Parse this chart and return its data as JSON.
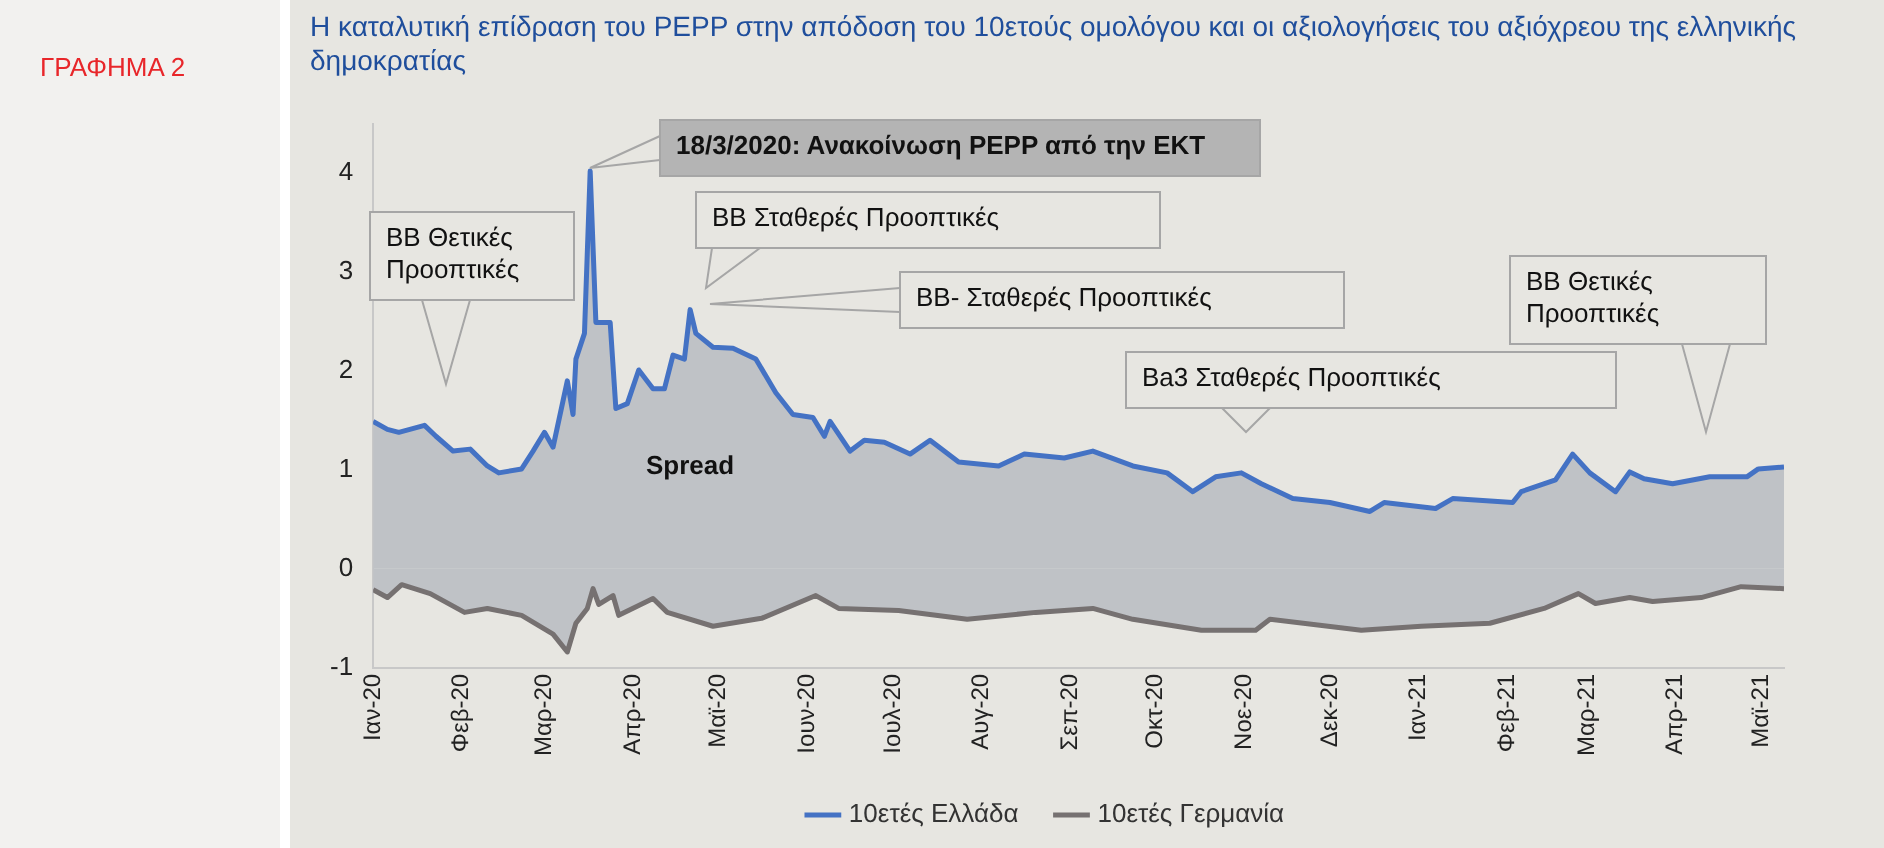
{
  "chart_data": {
    "type": "area",
    "title": "Η καταλυτική επίδραση του PEPP στην απόδοση του 10ετούς ομολόγου και οι αξιολογήσεις του αξιόχρεου της ελληνικής δημοκρατίας",
    "xlim": [
      "2020-01-01",
      "2021-05-09"
    ],
    "xticks": [
      {
        "value": "2020-01-01",
        "label": "Ιαν-20"
      },
      {
        "value": "2020-02-01",
        "label": "Φεβ-20"
      },
      {
        "value": "2020-03-01",
        "label": "Μαρ-20"
      },
      {
        "value": "2020-04-01",
        "label": "Απρ-20"
      },
      {
        "value": "2020-05-01",
        "label": "Μαϊ-20"
      },
      {
        "value": "2020-06-01",
        "label": "Ιουν-20"
      },
      {
        "value": "2020-07-01",
        "label": "Ιουλ-20"
      },
      {
        "value": "2020-08-01",
        "label": "Αυγ-20"
      },
      {
        "value": "2020-09-01",
        "label": "Σεπ-20"
      },
      {
        "value": "2020-10-01",
        "label": "Οκτ-20"
      },
      {
        "value": "2020-11-01",
        "label": "Νοε-20"
      },
      {
        "value": "2020-12-01",
        "label": "Δεκ-20"
      },
      {
        "value": "2021-01-01",
        "label": "Ιαν-21"
      },
      {
        "value": "2021-02-01",
        "label": "Φεβ-21"
      },
      {
        "value": "2021-03-01",
        "label": "Μαρ-21"
      },
      {
        "value": "2021-04-01",
        "label": "Απρ-21"
      },
      {
        "value": "2021-05-01",
        "label": "Μαϊ-21"
      }
    ],
    "ylim": [
      -1,
      4.5
    ],
    "yticks": [
      -1,
      0,
      1,
      2,
      3,
      4
    ],
    "grid": false,
    "legend": "bottom",
    "marker": "none",
    "series": [
      {
        "name": "10ετές Ελλάδα",
        "color": "#4472c4",
        "x": [
          "2020-01-01",
          "2020-01-06",
          "2020-01-10",
          "2020-01-19",
          "2020-01-23",
          "2020-01-29",
          "2020-02-04",
          "2020-02-10",
          "2020-02-14",
          "2020-02-22",
          "2020-02-26",
          "2020-03-01",
          "2020-03-04",
          "2020-03-09",
          "2020-03-11",
          "2020-03-12",
          "2020-03-15",
          "2020-03-17",
          "2020-03-19",
          "2020-03-24",
          "2020-03-26",
          "2020-03-30",
          "2020-04-03",
          "2020-04-08",
          "2020-04-12",
          "2020-04-15",
          "2020-04-19",
          "2020-04-21",
          "2020-04-23",
          "2020-04-29",
          "2020-05-06",
          "2020-05-14",
          "2020-05-21",
          "2020-05-27",
          "2020-06-03",
          "2020-06-07",
          "2020-06-09",
          "2020-06-16",
          "2020-06-21",
          "2020-06-28",
          "2020-07-07",
          "2020-07-14",
          "2020-07-24",
          "2020-08-07",
          "2020-08-16",
          "2020-08-30",
          "2020-09-09",
          "2020-09-23",
          "2020-10-05",
          "2020-10-14",
          "2020-10-22",
          "2020-10-31",
          "2020-11-07",
          "2020-11-18",
          "2020-12-01",
          "2020-12-15",
          "2020-12-20",
          "2021-01-07",
          "2021-01-13",
          "2021-02-03",
          "2021-02-06",
          "2021-02-18",
          "2021-02-24",
          "2021-03-02",
          "2021-03-11",
          "2021-03-16",
          "2021-03-21",
          "2021-03-31",
          "2021-04-13",
          "2021-04-26",
          "2021-04-30",
          "2021-05-09"
        ],
        "values": [
          1.49,
          1.41,
          1.38,
          1.45,
          1.34,
          1.19,
          1.21,
          1.04,
          0.97,
          1.01,
          1.19,
          1.38,
          1.23,
          1.9,
          1.56,
          2.12,
          2.38,
          4.02,
          2.49,
          2.49,
          1.62,
          1.67,
          2.01,
          1.82,
          1.82,
          2.16,
          2.12,
          2.62,
          2.38,
          2.24,
          2.23,
          2.12,
          1.78,
          1.56,
          1.53,
          1.34,
          1.49,
          1.19,
          1.3,
          1.28,
          1.16,
          1.3,
          1.08,
          1.04,
          1.16,
          1.12,
          1.19,
          1.04,
          0.97,
          0.78,
          0.93,
          0.97,
          0.86,
          0.71,
          0.67,
          0.58,
          0.67,
          0.61,
          0.71,
          0.67,
          0.78,
          0.9,
          1.16,
          0.97,
          0.78,
          0.98,
          0.91,
          0.86,
          0.93,
          0.93,
          1.01,
          1.03
        ]
      },
      {
        "name": "10ετές Γερμανία",
        "color": "#767171",
        "x": [
          "2020-01-01",
          "2020-01-06",
          "2020-01-11",
          "2020-01-21",
          "2020-02-02",
          "2020-02-10",
          "2020-02-22",
          "2020-03-04",
          "2020-03-09",
          "2020-03-12",
          "2020-03-16",
          "2020-03-18",
          "2020-03-20",
          "2020-03-25",
          "2020-03-27",
          "2020-04-08",
          "2020-04-13",
          "2020-04-29",
          "2020-05-16",
          "2020-06-04",
          "2020-06-12",
          "2020-07-03",
          "2020-07-27",
          "2020-08-20",
          "2020-09-09",
          "2020-09-23",
          "2020-10-17",
          "2020-11-05",
          "2020-11-10",
          "2020-12-12",
          "2021-01-02",
          "2021-01-26",
          "2021-02-14",
          "2021-02-26",
          "2021-03-04",
          "2021-03-16",
          "2021-03-24",
          "2021-04-10",
          "2021-04-24",
          "2021-05-09"
        ],
        "values": [
          -0.21,
          -0.29,
          -0.16,
          -0.25,
          -0.44,
          -0.4,
          -0.47,
          -0.66,
          -0.84,
          -0.55,
          -0.4,
          -0.2,
          -0.36,
          -0.27,
          -0.47,
          -0.3,
          -0.44,
          -0.58,
          -0.5,
          -0.27,
          -0.4,
          -0.42,
          -0.51,
          -0.44,
          -0.4,
          -0.51,
          -0.62,
          -0.62,
          -0.51,
          -0.62,
          -0.58,
          -0.55,
          -0.4,
          -0.25,
          -0.35,
          -0.29,
          -0.33,
          -0.29,
          -0.18,
          -0.2
        ]
      }
    ],
    "annotations": [
      "ΓΡΑΦΗΜΑ 2",
      "18/3/2020: Ανακοίνωση PEPP από την ΕΚΤ",
      "BB Θετικές Προοπτικές",
      "BB Σταθερές Προοπτικές",
      "BB- Σταθερές Προοπτικές",
      "Ba3 Σταθερές Προοπτικές",
      "BB Θετικές Προοπτικές",
      "Spread"
    ]
  }
}
